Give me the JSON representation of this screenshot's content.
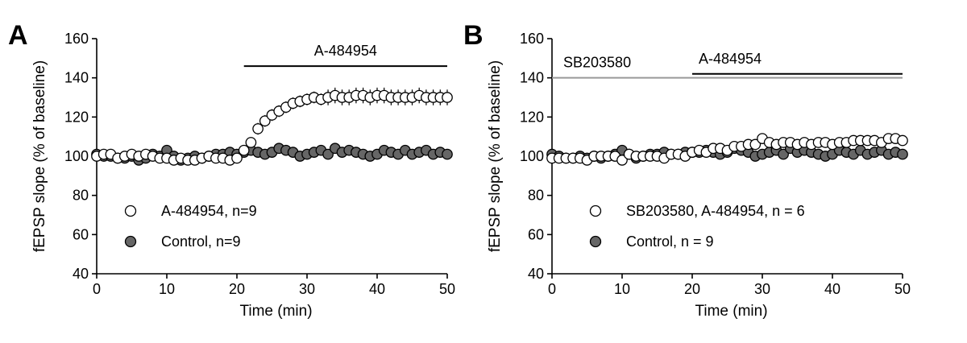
{
  "figure": {
    "panels": [
      {
        "letter": "A",
        "ylabel": "fEPSP slope (% of baseline)",
        "xlabel": "Time (min)",
        "xlim": [
          0,
          50
        ],
        "ylim": [
          40,
          160
        ],
        "xticks": [
          0,
          10,
          20,
          30,
          40,
          50
        ],
        "yticks": [
          40,
          60,
          80,
          100,
          120,
          140,
          160
        ],
        "bars": [
          {
            "label": "A-484954",
            "start": 21,
            "end": 50,
            "y": 146,
            "color": "#000000",
            "label_color": "#000000"
          }
        ],
        "legend": [
          {
            "label": "A-484954, n=9",
            "marker": "open"
          },
          {
            "label": "Control, n=9",
            "marker": "filled"
          }
        ]
      },
      {
        "letter": "B",
        "ylabel": "fEPSP slope (% of baseline)",
        "xlabel": "Time (min)",
        "xlim": [
          0,
          50
        ],
        "ylim": [
          40,
          160
        ],
        "xticks": [
          0,
          10,
          20,
          30,
          40,
          50
        ],
        "yticks": [
          40,
          60,
          80,
          100,
          120,
          140,
          160
        ],
        "bars": [
          {
            "label": "SB203580",
            "start": 0,
            "end": 50,
            "y": 140,
            "color": "#999999",
            "label_color": "#777777"
          },
          {
            "label": "A-484954",
            "start": 20,
            "end": 50,
            "y": 142,
            "color": "#000000",
            "label_color": "#000000"
          }
        ],
        "legend": [
          {
            "label": "SB203580, A-484954, n = 6",
            "marker": "open"
          },
          {
            "label": "Control, n = 9",
            "marker": "filled"
          }
        ]
      }
    ]
  },
  "chart_data": [
    {
      "type": "scatter",
      "title": "A",
      "xlabel": "Time (min)",
      "ylabel": "fEPSP slope (% of baseline)",
      "xlim": [
        0,
        50
      ],
      "ylim": [
        40,
        160
      ],
      "series": [
        {
          "name": "A-484954, n=9",
          "marker": "open",
          "x": [
            0,
            1,
            2,
            3,
            4,
            5,
            6,
            7,
            8,
            9,
            10,
            11,
            12,
            13,
            14,
            15,
            16,
            17,
            18,
            19,
            20,
            21,
            22,
            23,
            24,
            25,
            26,
            27,
            28,
            29,
            30,
            31,
            32,
            33,
            34,
            35,
            36,
            37,
            38,
            39,
            40,
            41,
            42,
            43,
            44,
            45,
            46,
            47,
            48,
            49,
            50
          ],
          "y": [
            100,
            101,
            101,
            99,
            100,
            101,
            100,
            101,
            100,
            99,
            99,
            98,
            99,
            98,
            98,
            99,
            100,
            99,
            99,
            98,
            99,
            103,
            107,
            114,
            118,
            121,
            123,
            125,
            127,
            128,
            129,
            130,
            129,
            130,
            131,
            130,
            130,
            131,
            131,
            130,
            131,
            131,
            130,
            130,
            130,
            130,
            131,
            130,
            130,
            130,
            130
          ],
          "err": [
            2,
            2,
            2,
            2,
            2,
            2,
            2,
            2,
            2,
            2,
            2,
            2,
            2,
            2,
            2,
            2,
            2,
            2,
            2,
            2,
            2,
            2,
            2,
            3,
            3,
            3,
            3,
            3,
            3,
            3,
            3,
            3,
            3,
            4,
            4,
            4,
            4,
            4,
            4,
            4,
            4,
            4,
            4,
            4,
            4,
            4,
            4,
            4,
            4,
            4,
            4
          ]
        },
        {
          "name": "Control, n=9",
          "marker": "filled",
          "x": [
            0,
            1,
            2,
            3,
            4,
            5,
            6,
            7,
            8,
            9,
            10,
            11,
            12,
            13,
            14,
            15,
            16,
            17,
            18,
            19,
            20,
            21,
            22,
            23,
            24,
            25,
            26,
            27,
            28,
            29,
            30,
            31,
            32,
            33,
            34,
            35,
            36,
            37,
            38,
            39,
            40,
            41,
            42,
            43,
            44,
            45,
            46,
            47,
            48,
            49,
            50
          ],
          "y": [
            101,
            100,
            100,
            99,
            99,
            100,
            98,
            99,
            101,
            100,
            103,
            100,
            98,
            99,
            100,
            99,
            100,
            101,
            101,
            102,
            101,
            102,
            103,
            102,
            101,
            102,
            104,
            103,
            102,
            100,
            101,
            102,
            103,
            101,
            104,
            102,
            103,
            102,
            101,
            100,
            101,
            103,
            102,
            101,
            103,
            101,
            102,
            103,
            101,
            102,
            101
          ],
          "err": [
            2,
            2,
            2,
            2,
            2,
            2,
            2,
            2,
            2,
            2,
            2,
            2,
            2,
            2,
            2,
            2,
            2,
            2,
            2,
            2,
            2,
            2,
            2,
            2,
            2,
            2,
            2,
            2,
            2,
            2,
            2,
            2,
            2,
            2,
            2,
            2,
            2,
            2,
            2,
            2,
            2,
            2,
            2,
            2,
            2,
            2,
            2,
            2,
            2,
            2,
            2
          ]
        }
      ]
    },
    {
      "type": "scatter",
      "title": "B",
      "xlabel": "Time (min)",
      "ylabel": "fEPSP slope (% of baseline)",
      "xlim": [
        0,
        50
      ],
      "ylim": [
        40,
        160
      ],
      "series": [
        {
          "name": "SB203580, A-484954, n = 6",
          "marker": "open",
          "x": [
            0,
            1,
            2,
            3,
            4,
            5,
            6,
            7,
            8,
            9,
            10,
            11,
            12,
            13,
            14,
            15,
            16,
            17,
            18,
            19,
            20,
            21,
            22,
            23,
            24,
            25,
            26,
            27,
            28,
            29,
            30,
            31,
            32,
            33,
            34,
            35,
            36,
            37,
            38,
            39,
            40,
            41,
            42,
            43,
            44,
            45,
            46,
            47,
            48,
            49,
            50
          ],
          "y": [
            99,
            99,
            99,
            99,
            99,
            98,
            100,
            100,
            100,
            100,
            98,
            101,
            100,
            100,
            100,
            100,
            99,
            101,
            101,
            100,
            102,
            103,
            102,
            104,
            104,
            103,
            105,
            105,
            106,
            106,
            109,
            107,
            106,
            107,
            107,
            106,
            107,
            106,
            107,
            107,
            106,
            107,
            107,
            108,
            108,
            108,
            108,
            107,
            109,
            109,
            108
          ],
          "err": [
            2,
            2,
            2,
            2,
            2,
            2,
            2,
            2,
            2,
            2,
            2,
            2,
            2,
            2,
            2,
            2,
            2,
            2,
            2,
            2,
            2,
            2,
            2,
            2,
            2,
            2,
            2,
            2,
            2,
            2,
            2,
            2,
            2,
            2,
            2,
            2,
            2,
            2,
            2,
            2,
            2,
            2,
            2,
            2,
            2,
            2,
            2,
            2,
            2,
            2,
            2
          ]
        },
        {
          "name": "Control, n = 9",
          "marker": "filled",
          "x": [
            0,
            1,
            2,
            3,
            4,
            5,
            6,
            7,
            8,
            9,
            10,
            11,
            12,
            13,
            14,
            15,
            16,
            17,
            18,
            19,
            20,
            21,
            22,
            23,
            24,
            25,
            26,
            27,
            28,
            29,
            30,
            31,
            32,
            33,
            34,
            35,
            36,
            37,
            38,
            39,
            40,
            41,
            42,
            43,
            44,
            45,
            46,
            47,
            48,
            49,
            50
          ],
          "y": [
            101,
            100,
            99,
            99,
            100,
            99,
            100,
            99,
            100,
            101,
            103,
            101,
            99,
            100,
            101,
            101,
            102,
            101,
            101,
            102,
            102,
            102,
            103,
            102,
            101,
            102,
            104,
            103,
            102,
            100,
            101,
            102,
            103,
            101,
            104,
            102,
            103,
            102,
            101,
            100,
            101,
            103,
            102,
            101,
            103,
            101,
            102,
            103,
            101,
            102,
            101
          ],
          "err": [
            2,
            2,
            2,
            2,
            2,
            2,
            2,
            2,
            2,
            2,
            2,
            2,
            2,
            2,
            2,
            2,
            2,
            2,
            2,
            2,
            2,
            2,
            2,
            2,
            2,
            2,
            2,
            2,
            2,
            2,
            2,
            2,
            2,
            2,
            2,
            2,
            2,
            2,
            2,
            2,
            2,
            2,
            2,
            2,
            2,
            2,
            2,
            2,
            2,
            2,
            2
          ]
        }
      ]
    }
  ],
  "colors": {
    "open_fill": "#ffffff",
    "filled_fill": "#666666",
    "marker_stroke": "#000000"
  }
}
